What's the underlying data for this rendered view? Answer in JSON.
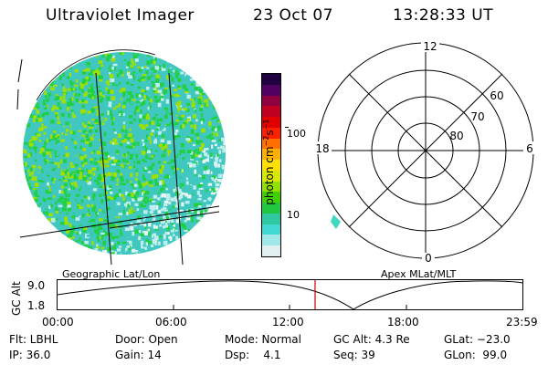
{
  "header": {
    "instrument": "Ultraviolet Imager",
    "date": "23 Oct 07",
    "time": "13:28:33 UT"
  },
  "image_panel": {
    "label": "Geographic Lat/Lon",
    "colors": {
      "background": "#40c8c0",
      "green": "#20d040",
      "yellow_green": "#a0e000",
      "light_cyan": "#c0eeee",
      "pale": "#e8f4f4"
    }
  },
  "colorbar": {
    "unit_label": "photon cm",
    "unit_exp1": "−2",
    "unit_s": "s",
    "unit_exp2": "−1",
    "tick_100": "100",
    "tick_10": "10",
    "colors": [
      "#e0f0f0",
      "#a0e8e8",
      "#40d8d0",
      "#30c8a0",
      "#20c840",
      "#40d000",
      "#90e000",
      "#d8e800",
      "#ffe000",
      "#ffb000",
      "#ff7000",
      "#ff2000",
      "#e00000",
      "#c00020",
      "#900040",
      "#500060",
      "#200040"
    ]
  },
  "polar_plot": {
    "label": "Apex MLat/MLT",
    "mlt_top": "12",
    "mlt_bottom": "0",
    "mlt_left": "18",
    "mlt_right": "6",
    "lat_60": "60",
    "lat_70": "70",
    "lat_80": "80"
  },
  "altitude_plot": {
    "ylabel": "GC Alt",
    "ytick_high": "9.0",
    "ytick_low": "1.8",
    "x_ticks": [
      "00:00",
      "06:00",
      "12:00",
      "18:00",
      "23:59"
    ],
    "marker_color": "#cc0000"
  },
  "status": {
    "filter_label": "Flt: LBHL",
    "ip_label": "IP: 36.0",
    "door_label": "Door: Open",
    "gain_label": "Gain: 14",
    "mode_label": "Mode: Normal",
    "dsp_label": "Dsp:    4.1",
    "gcalt_label": "GC Alt: 4.3 Re",
    "seq_label": "Seq: 39",
    "glat_label": "GLat: −23.0",
    "glon_label": "GLon:  99.0"
  }
}
